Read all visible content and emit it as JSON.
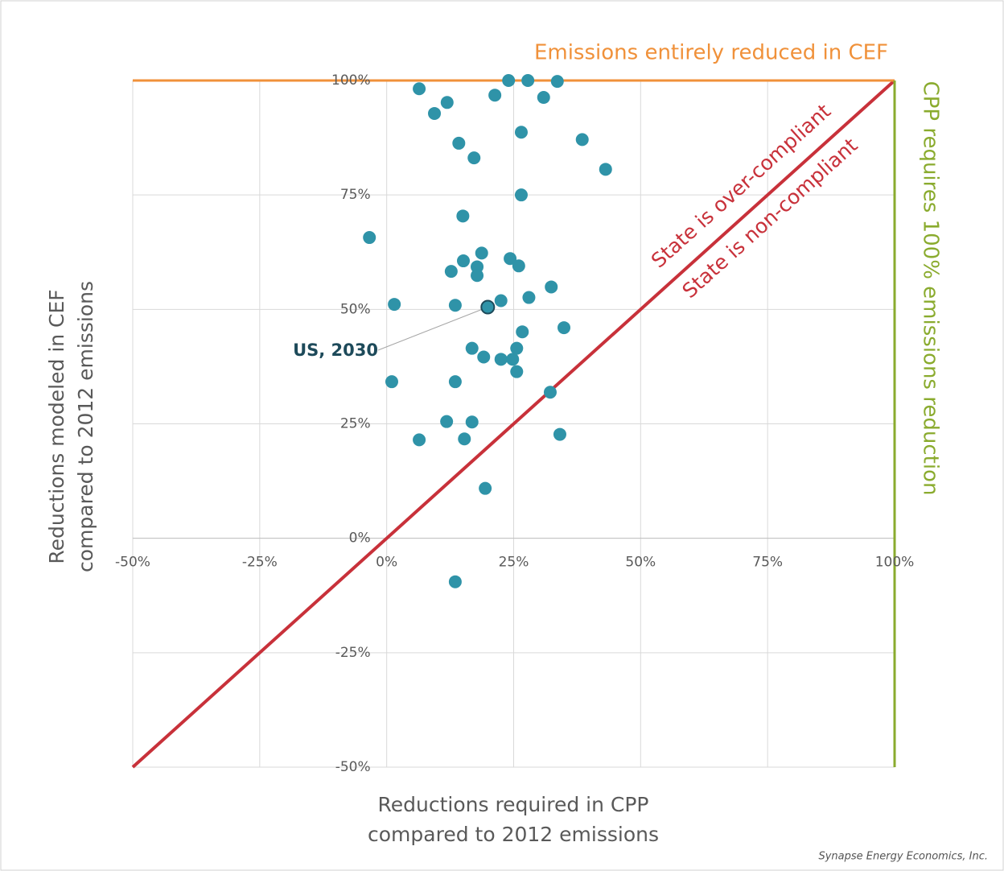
{
  "chart_data": {
    "type": "scatter",
    "x_label": [
      "Reductions required in CPP",
      "compared to 2012 emissions"
    ],
    "y_label": [
      "Reductions modeled in CEF",
      "compared to 2012 emissions"
    ],
    "xlim": [
      -50,
      100
    ],
    "ylim": [
      -50,
      100
    ],
    "xticks": [
      {
        "value": -50,
        "label": "-50%"
      },
      {
        "value": -25,
        "label": "-25%"
      },
      {
        "value": 0,
        "label": "0%"
      },
      {
        "value": 25,
        "label": "25%"
      },
      {
        "value": 50,
        "label": "50%"
      },
      {
        "value": 75,
        "label": "75%"
      },
      {
        "value": 100,
        "label": "100%"
      }
    ],
    "yticks": [
      {
        "value": -50,
        "label": "-50%"
      },
      {
        "value": -25,
        "label": "-25%"
      },
      {
        "value": 0,
        "label": "0%"
      },
      {
        "value": 25,
        "label": "25%"
      },
      {
        "value": 50,
        "label": "50%"
      },
      {
        "value": 75,
        "label": "75%"
      },
      {
        "value": 100,
        "label": "100%"
      }
    ],
    "grid": true,
    "series": [
      {
        "color": "#2f93a8",
        "x": [
          6.4,
          11.9,
          9.4,
          21.3,
          24.0,
          27.8,
          33.6,
          30.9,
          26.5,
          14.2,
          17.2,
          38.5,
          43.1,
          26.5,
          15.0,
          -3.4,
          18.7,
          15.1,
          24.3,
          17.8,
          26.0,
          12.7,
          17.8,
          32.4,
          28.0,
          22.5,
          1.5,
          13.5,
          19.9,
          34.9,
          26.7,
          16.8,
          25.6,
          19.1,
          22.5,
          24.8,
          25.6,
          1.0,
          13.5,
          32.2,
          11.8,
          16.8,
          6.4,
          15.3,
          34.1,
          19.4,
          13.5
        ],
        "values": [
          98.2,
          95.2,
          92.8,
          96.8,
          100,
          100,
          99.8,
          96.3,
          88.7,
          86.3,
          83.1,
          87.1,
          80.6,
          75.0,
          70.4,
          65.7,
          62.3,
          60.6,
          61.1,
          59.3,
          59.5,
          58.3,
          57.4,
          54.9,
          52.6,
          51.9,
          51.1,
          50.9,
          50.5,
          46.0,
          45.1,
          41.5,
          41.5,
          39.6,
          39.1,
          39.1,
          36.4,
          34.2,
          34.2,
          31.9,
          25.5,
          25.4,
          21.5,
          21.7,
          22.7,
          10.9,
          -9.5
        ]
      }
    ],
    "reference_lines": [
      {
        "axis": "y",
        "value": 100,
        "color": "#f0913a",
        "label": "Emissions entirely reduced in CEF"
      },
      {
        "axis": "x",
        "value": 100,
        "color": "#8aab2e",
        "label": "CPP requires 100% emissions reduction"
      }
    ],
    "parity_line": {
      "color": "#c8313a",
      "labels": [
        "State is over-compliant",
        "State is non-compliant"
      ]
    },
    "annotation": "US, 2030",
    "source": "Synapse Energy Economics, Inc."
  }
}
